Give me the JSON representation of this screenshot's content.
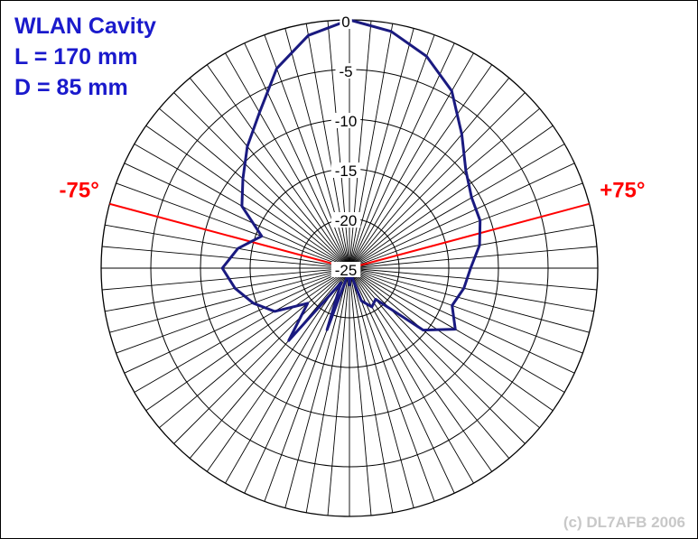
{
  "title": [
    "WLAN Cavity",
    "L = 170 mm",
    "D = 85 mm"
  ],
  "copyright": "(c) DL7AFB 2006",
  "chart_data": {
    "type": "polar-line",
    "radial_min": -25,
    "radial_max": 0,
    "radial_ticks": [
      0,
      -5,
      -10,
      -15,
      -20,
      -25
    ],
    "radial_tick_labels": [
      "0",
      "-5",
      "-10",
      "-15",
      "-20",
      "-25"
    ],
    "angular_step_deg": 5,
    "series": [
      {
        "color": "#1a1a80",
        "points": [
          [
            0,
            0
          ],
          [
            10,
            -0.8
          ],
          [
            20,
            -2.3
          ],
          [
            30,
            -4.4
          ],
          [
            40,
            -7.4
          ],
          [
            50,
            -9.7
          ],
          [
            60,
            -10.8
          ],
          [
            70,
            -11.0
          ],
          [
            80,
            -11.7
          ],
          [
            90,
            -12.8
          ],
          [
            100,
            -13.3
          ],
          [
            110,
            -14.0
          ],
          [
            120,
            -12.7
          ],
          [
            130,
            -15.3
          ],
          [
            140,
            -20.9
          ],
          [
            150,
            -20.5
          ],
          [
            160,
            -21.5
          ],
          [
            170,
            -24.5
          ],
          [
            180,
            -23.3
          ],
          [
            190,
            -24.5
          ],
          [
            200,
            -18.4
          ],
          [
            210,
            -23.3
          ],
          [
            220,
            -15.5
          ],
          [
            230,
            -19.5
          ],
          [
            240,
            -16.3
          ],
          [
            250,
            -14.7
          ],
          [
            260,
            -13.3
          ],
          [
            270,
            -12.2
          ],
          [
            280,
            -13.6
          ],
          [
            290,
            -15.6
          ],
          [
            300,
            -12.5
          ],
          [
            310,
            -11.0
          ],
          [
            320,
            -9.0
          ],
          [
            330,
            -6.9
          ],
          [
            340,
            -3.6
          ],
          [
            350,
            -1.2
          ],
          [
            360,
            0
          ]
        ]
      }
    ],
    "annotations": [
      {
        "label": "+75°",
        "angle_deg": 75,
        "color": "#ff0000"
      },
      {
        "label": "-75°",
        "angle_deg": -75,
        "color": "#ff0000"
      }
    ]
  }
}
